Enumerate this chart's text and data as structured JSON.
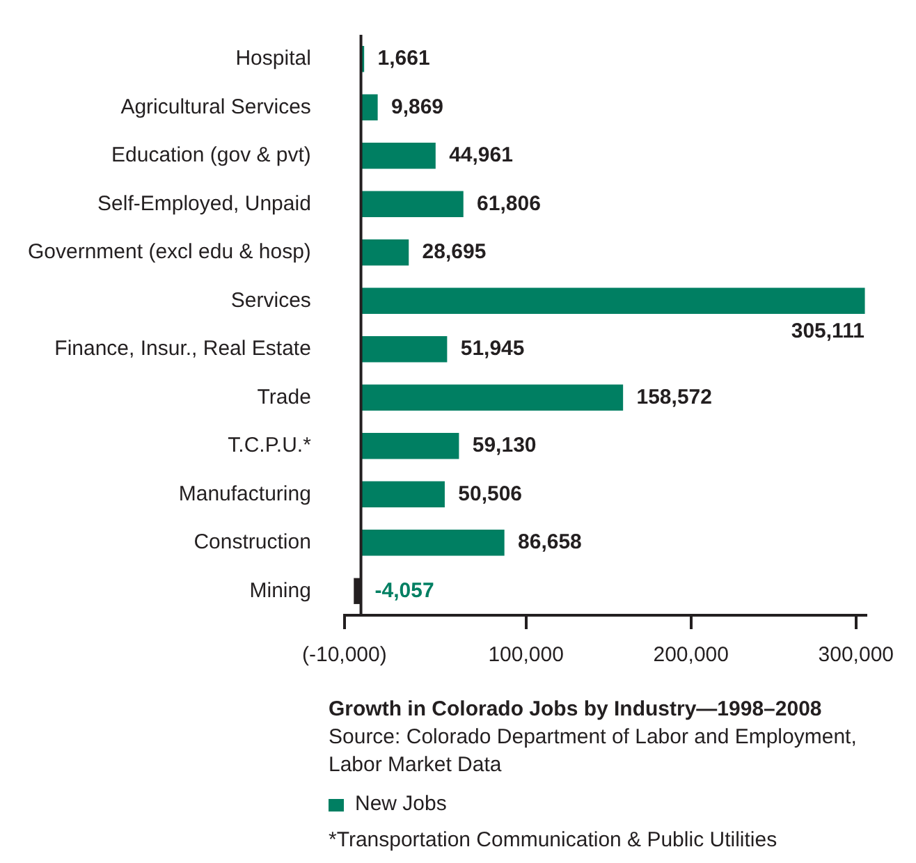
{
  "chart_data": {
    "type": "bar",
    "orientation": "horizontal",
    "title": "Growth in Colorado Jobs by Industry—1998–2008",
    "categories": [
      "Hospital",
      "Agricultural Services",
      "Education (gov & pvt)",
      "Self-Employed, Unpaid",
      "Government (excl edu & hosp)",
      "Services",
      "Finance, Insur., Real Estate",
      "Trade",
      "T.C.P.U.*",
      "Manufacturing",
      "Construction",
      "Mining"
    ],
    "series": [
      {
        "name": "New Jobs",
        "color": "#007f62",
        "colors": [
          "#007f62",
          "#007f62",
          "#007f62",
          "#007f62",
          "#007f62",
          "#007f62",
          "#007f62",
          "#007f62",
          "#007f62",
          "#007f62",
          "#007f62",
          "#231f20"
        ],
        "values": [
          1661,
          9869,
          44961,
          61806,
          28695,
          305111,
          51945,
          158572,
          59130,
          50506,
          86658,
          -4057
        ],
        "value_labels": [
          "1,661",
          "9,869",
          "44,961",
          "61,806",
          "28,695",
          "305,111",
          "51,945",
          "158,572",
          "59,130",
          "50,506",
          "86,658",
          "-4,057"
        ]
      }
    ],
    "xlim": [
      -10000,
      306000
    ],
    "xticks": [
      {
        "value": -10000,
        "label": "(-10,000)"
      },
      {
        "value": 100000,
        "label": "100,000"
      },
      {
        "value": 200000,
        "label": "200,000"
      },
      {
        "value": 300000,
        "label": "300,000"
      }
    ],
    "grid": false,
    "legend": "bottom",
    "annotations": [
      "Source: Colorado Department of Labor and Employment, Labor Market Data",
      "*Transportation Communication & Public Utilities"
    ]
  }
}
